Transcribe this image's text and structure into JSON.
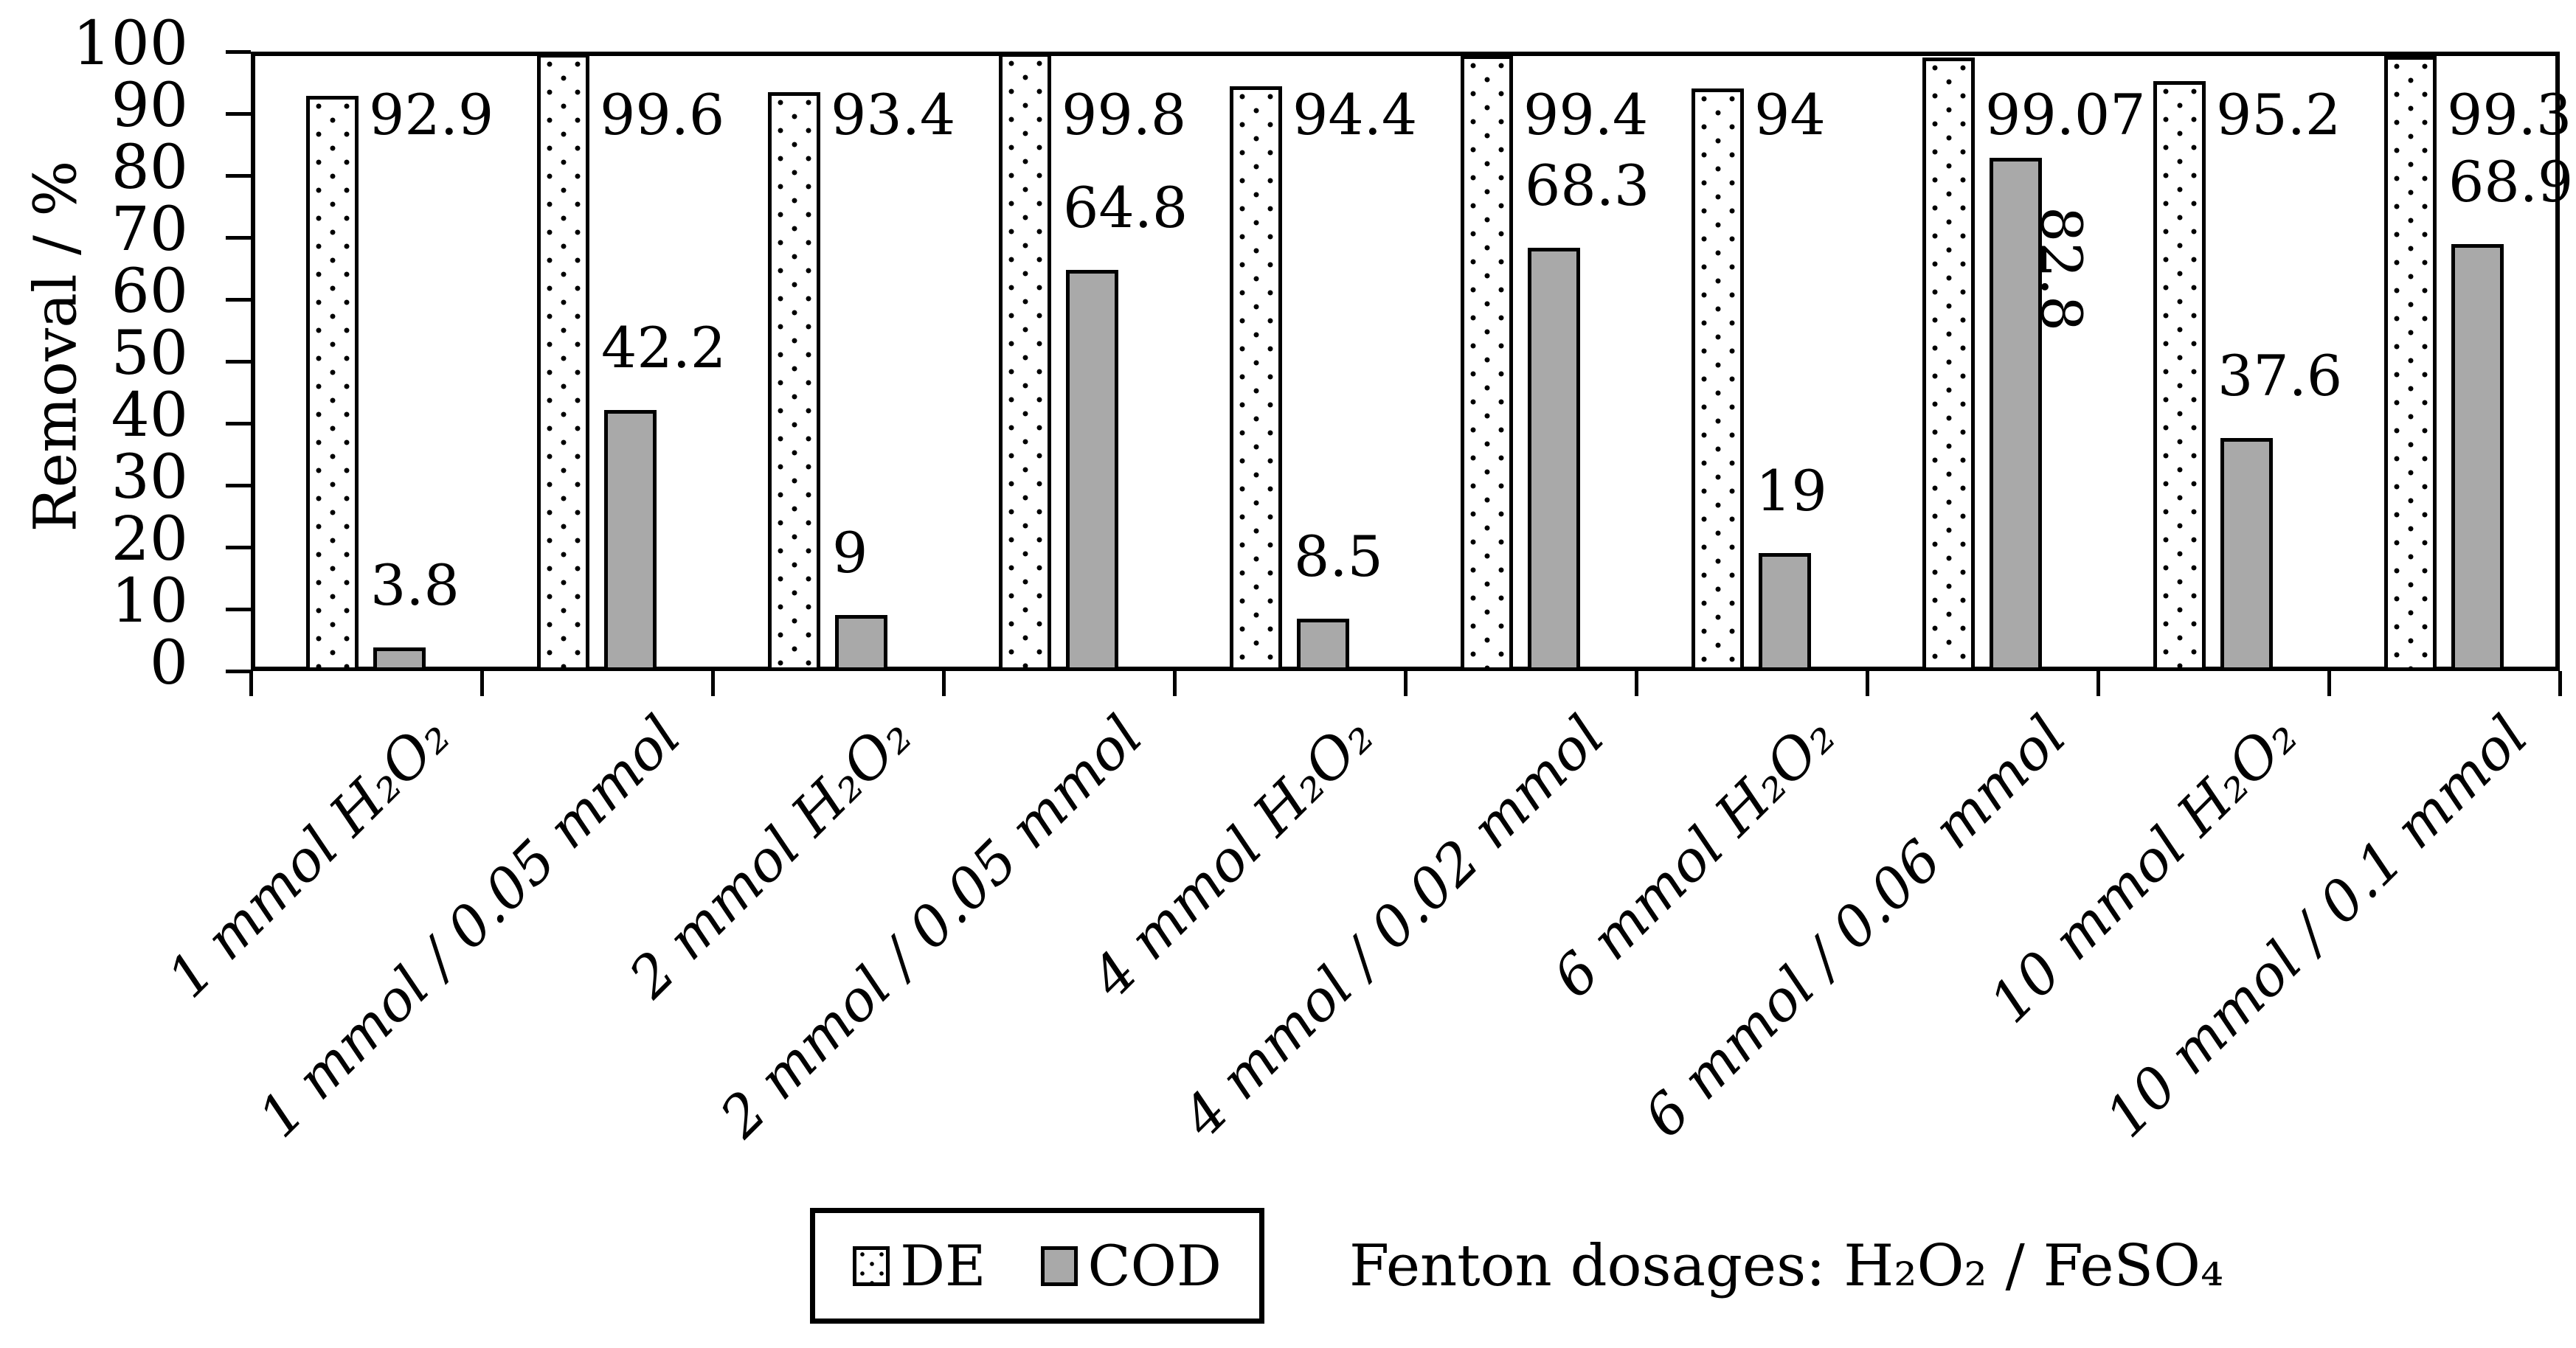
{
  "chart_data": {
    "type": "bar",
    "title": "",
    "ylabel": "Removal / %",
    "xlabel": "",
    "ylim": [
      0,
      100
    ],
    "yticks": [
      0,
      10,
      20,
      30,
      40,
      50,
      60,
      70,
      80,
      90,
      100
    ],
    "grid": false,
    "legend_position": "bottom",
    "legend_note": "Fenton dosages: H₂O₂ / FeSO₄",
    "categories": [
      "1 mmol H₂O₂",
      "1 mmol / 0.05 mmol",
      "2 mmol H₂O₂",
      "2 mmol / 0.05 mmol",
      "4 mmol H₂O₂",
      "4 mmol / 0.02 mmol",
      "6 mmol H₂O₂",
      "6 mmol / 0.06 mmol",
      "10 mmol H₂O₂",
      "10 mmol / 0.1 mmol"
    ],
    "series": [
      {
        "name": "DE",
        "style": "dotted-pattern",
        "fill": "#ffffff",
        "values": [
          92.9,
          99.6,
          93.4,
          99.8,
          94.4,
          99.4,
          94,
          99.07,
          95.2,
          99.3
        ]
      },
      {
        "name": "COD",
        "style": "solid",
        "fill": "#a9a9a9",
        "values": [
          3.8,
          42.2,
          9,
          64.8,
          8.5,
          68.3,
          19,
          82.8,
          37.6,
          68.9
        ],
        "rotated_value_label_indexes": [
          7
        ]
      }
    ],
    "colors": {
      "bar_border": "#000000",
      "axis": "#000000",
      "cod_fill": "#a9a9a9",
      "text": "#000000"
    }
  }
}
